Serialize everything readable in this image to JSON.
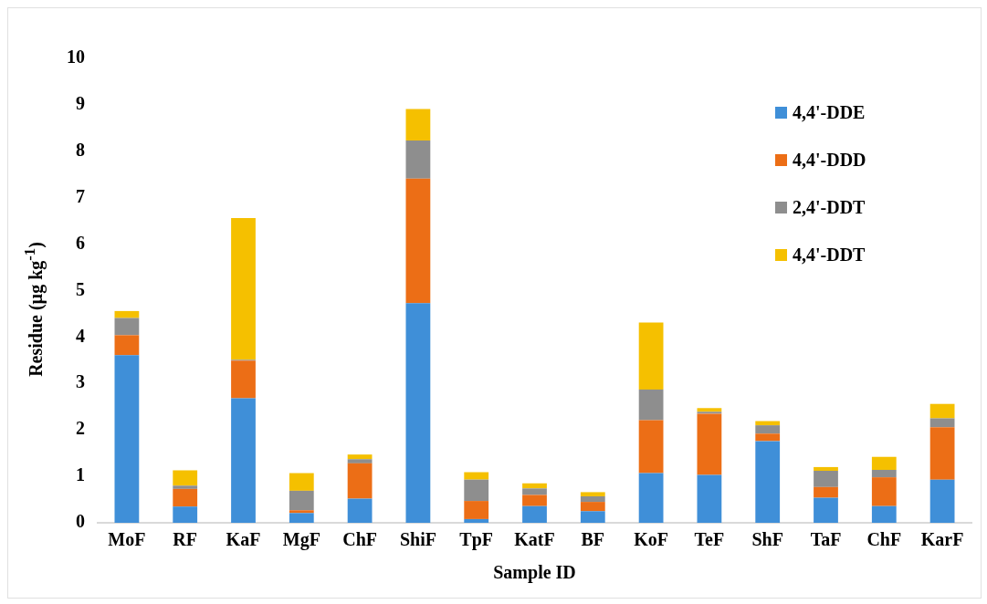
{
  "chart_data": {
    "type": "bar",
    "stacked": true,
    "xlabel": "Sample ID",
    "ylabel": "Residue (µg kg$^{-1}$)",
    "categories": [
      "MoF",
      "RF",
      "KaF",
      "MgF",
      "ChF",
      "ShiF",
      "TpF",
      "KatF",
      "BF",
      "KoF",
      "TeF",
      "ShF",
      "TaF",
      "ChF",
      "KarF"
    ],
    "series": [
      {
        "name": "4,4'-DDE",
        "color": "#3f8fd8",
        "values": [
          3.61,
          0.35,
          2.68,
          0.21,
          0.52,
          4.73,
          0.08,
          0.36,
          0.25,
          1.07,
          1.03,
          1.76,
          0.54,
          0.36,
          0.93
        ]
      },
      {
        "name": "4,4'-DDD",
        "color": "#ec6e16",
        "values": [
          0.43,
          0.38,
          0.81,
          0.06,
          0.76,
          2.68,
          0.39,
          0.24,
          0.2,
          1.14,
          1.32,
          0.16,
          0.23,
          0.62,
          1.13
        ]
      },
      {
        "name": "2,4'-DDT",
        "color": "#8e8e8e",
        "values": [
          0.37,
          0.07,
          0.02,
          0.42,
          0.09,
          0.82,
          0.46,
          0.14,
          0.12,
          0.66,
          0.04,
          0.18,
          0.35,
          0.16,
          0.19
        ]
      },
      {
        "name": "4,4'-DDT",
        "color": "#f5c000",
        "values": [
          0.15,
          0.33,
          3.05,
          0.38,
          0.1,
          0.68,
          0.16,
          0.11,
          0.09,
          1.44,
          0.08,
          0.09,
          0.08,
          0.28,
          0.31
        ]
      }
    ],
    "ylim": [
      0,
      10
    ],
    "yticks": [
      0,
      1,
      2,
      3,
      4,
      5,
      6,
      7,
      8,
      9,
      10
    ],
    "grid": false,
    "legend": "top right"
  }
}
